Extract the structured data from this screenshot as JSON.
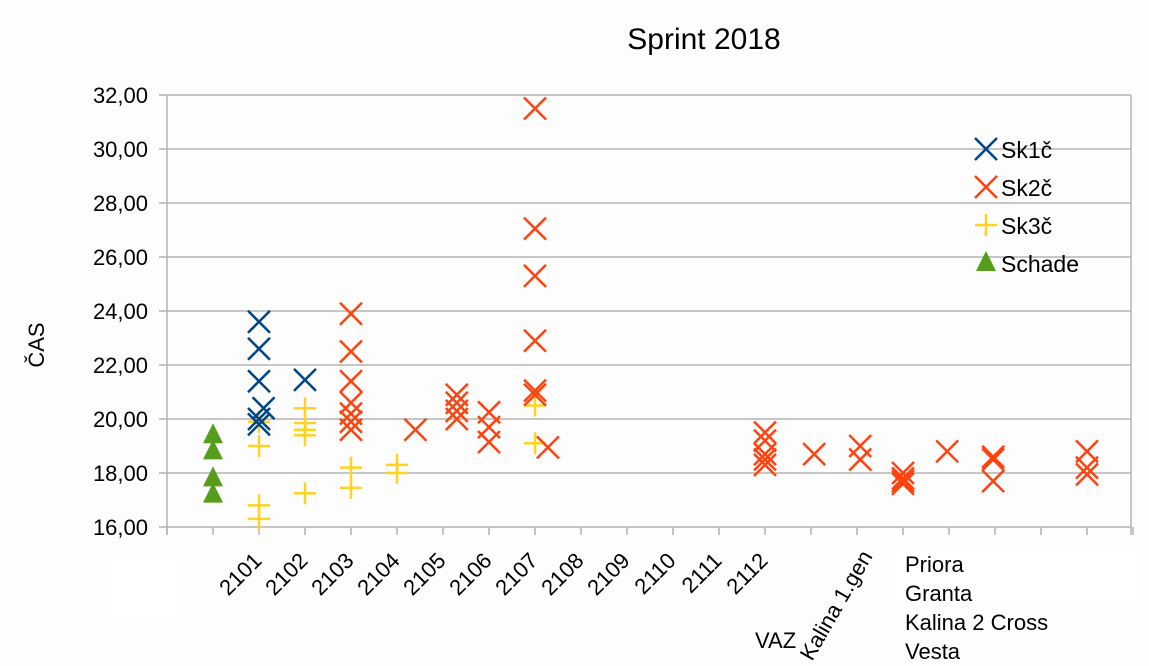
{
  "chart_data": {
    "type": "scatter",
    "title": "Sprint 2018",
    "xlabel": "",
    "ylabel": "ČAS",
    "ylim": [
      16,
      32
    ],
    "xlim": [
      0,
      21
    ],
    "yticks": [
      16,
      18,
      20,
      22,
      24,
      26,
      28,
      30,
      32
    ],
    "ytick_labels": [
      "16,00",
      "18,00",
      "20,00",
      "22,00",
      "24,00",
      "26,00",
      "28,00",
      "30,00",
      "32,00"
    ],
    "grid": true,
    "legend_position": "top-right",
    "x_tick_labels": [
      {
        "pos": 2,
        "label": "2101"
      },
      {
        "pos": 3,
        "label": "2102"
      },
      {
        "pos": 4,
        "label": "2103"
      },
      {
        "pos": 5,
        "label": "2104"
      },
      {
        "pos": 6,
        "label": "2105"
      },
      {
        "pos": 7,
        "label": "2106"
      },
      {
        "pos": 8,
        "label": "2107"
      },
      {
        "pos": 9,
        "label": "2108"
      },
      {
        "pos": 10,
        "label": "2109"
      },
      {
        "pos": 11,
        "label": "2110"
      },
      {
        "pos": 12,
        "label": "2111"
      },
      {
        "pos": 13,
        "label": "2112"
      }
    ],
    "extra_labels": {
      "vaz": "VAZ",
      "kalina1": "Kalina 1.gen"
    },
    "note_lines": [
      "Priora",
      "Granta",
      "Kalina 2 Cross",
      "Vesta"
    ],
    "series": [
      {
        "name": "Sk1č",
        "marker": "x",
        "color": "#004586",
        "points": [
          [
            2,
            23.6
          ],
          [
            2,
            22.6
          ],
          [
            2,
            21.4
          ],
          [
            2.1,
            20.4
          ],
          [
            2,
            20.0
          ],
          [
            2,
            19.8
          ],
          [
            3,
            21.45
          ]
        ]
      },
      {
        "name": "Sk2č",
        "marker": "x",
        "color": "#ff420e",
        "points": [
          [
            4,
            23.9
          ],
          [
            4,
            22.5
          ],
          [
            4,
            21.4
          ],
          [
            4,
            20.6
          ],
          [
            4,
            20.2
          ],
          [
            4,
            19.9
          ],
          [
            4,
            19.6
          ],
          [
            5.4,
            19.6
          ],
          [
            6.3,
            20.9
          ],
          [
            6.3,
            20.6
          ],
          [
            6.3,
            20.3
          ],
          [
            6.3,
            20.0
          ],
          [
            7,
            20.25
          ],
          [
            7,
            19.7
          ],
          [
            7,
            19.15
          ],
          [
            8,
            31.5
          ],
          [
            8,
            27.05
          ],
          [
            8,
            25.3
          ],
          [
            8,
            22.9
          ],
          [
            8,
            21.05
          ],
          [
            8,
            20.9
          ],
          [
            8.28,
            18.95
          ],
          [
            13,
            19.5
          ],
          [
            13,
            19.2
          ],
          [
            13,
            18.7
          ],
          [
            13,
            18.5
          ],
          [
            13,
            18.3
          ],
          [
            14.07,
            18.7
          ],
          [
            15.07,
            19.0
          ],
          [
            15.07,
            18.5
          ],
          [
            16,
            18.0
          ],
          [
            16,
            17.8
          ],
          [
            16,
            17.7
          ],
          [
            16,
            17.6
          ],
          [
            16.96,
            18.8
          ],
          [
            17.96,
            18.6
          ],
          [
            17.96,
            18.5
          ],
          [
            17.96,
            17.7
          ],
          [
            20,
            18.8
          ],
          [
            20,
            18.2
          ],
          [
            20,
            17.95
          ]
        ]
      },
      {
        "name": "Sk3č",
        "marker": "plus",
        "color": "#ffd320",
        "points": [
          [
            2,
            19.9
          ],
          [
            2,
            19.0
          ],
          [
            2,
            16.8
          ],
          [
            2,
            16.3
          ],
          [
            3,
            20.4
          ],
          [
            3,
            19.85
          ],
          [
            3,
            19.6
          ],
          [
            3,
            19.4
          ],
          [
            3,
            17.25
          ],
          [
            4,
            18.2
          ],
          [
            4,
            17.45
          ],
          [
            5,
            18.3
          ],
          [
            5,
            18.0
          ],
          [
            8,
            20.5
          ],
          [
            8,
            19.1
          ]
        ]
      },
      {
        "name": "Schade",
        "marker": "triangle",
        "color": "#579d1c",
        "points": [
          [
            1,
            19.4
          ],
          [
            1,
            18.8
          ],
          [
            1,
            17.8
          ],
          [
            1,
            17.2
          ]
        ]
      }
    ]
  }
}
